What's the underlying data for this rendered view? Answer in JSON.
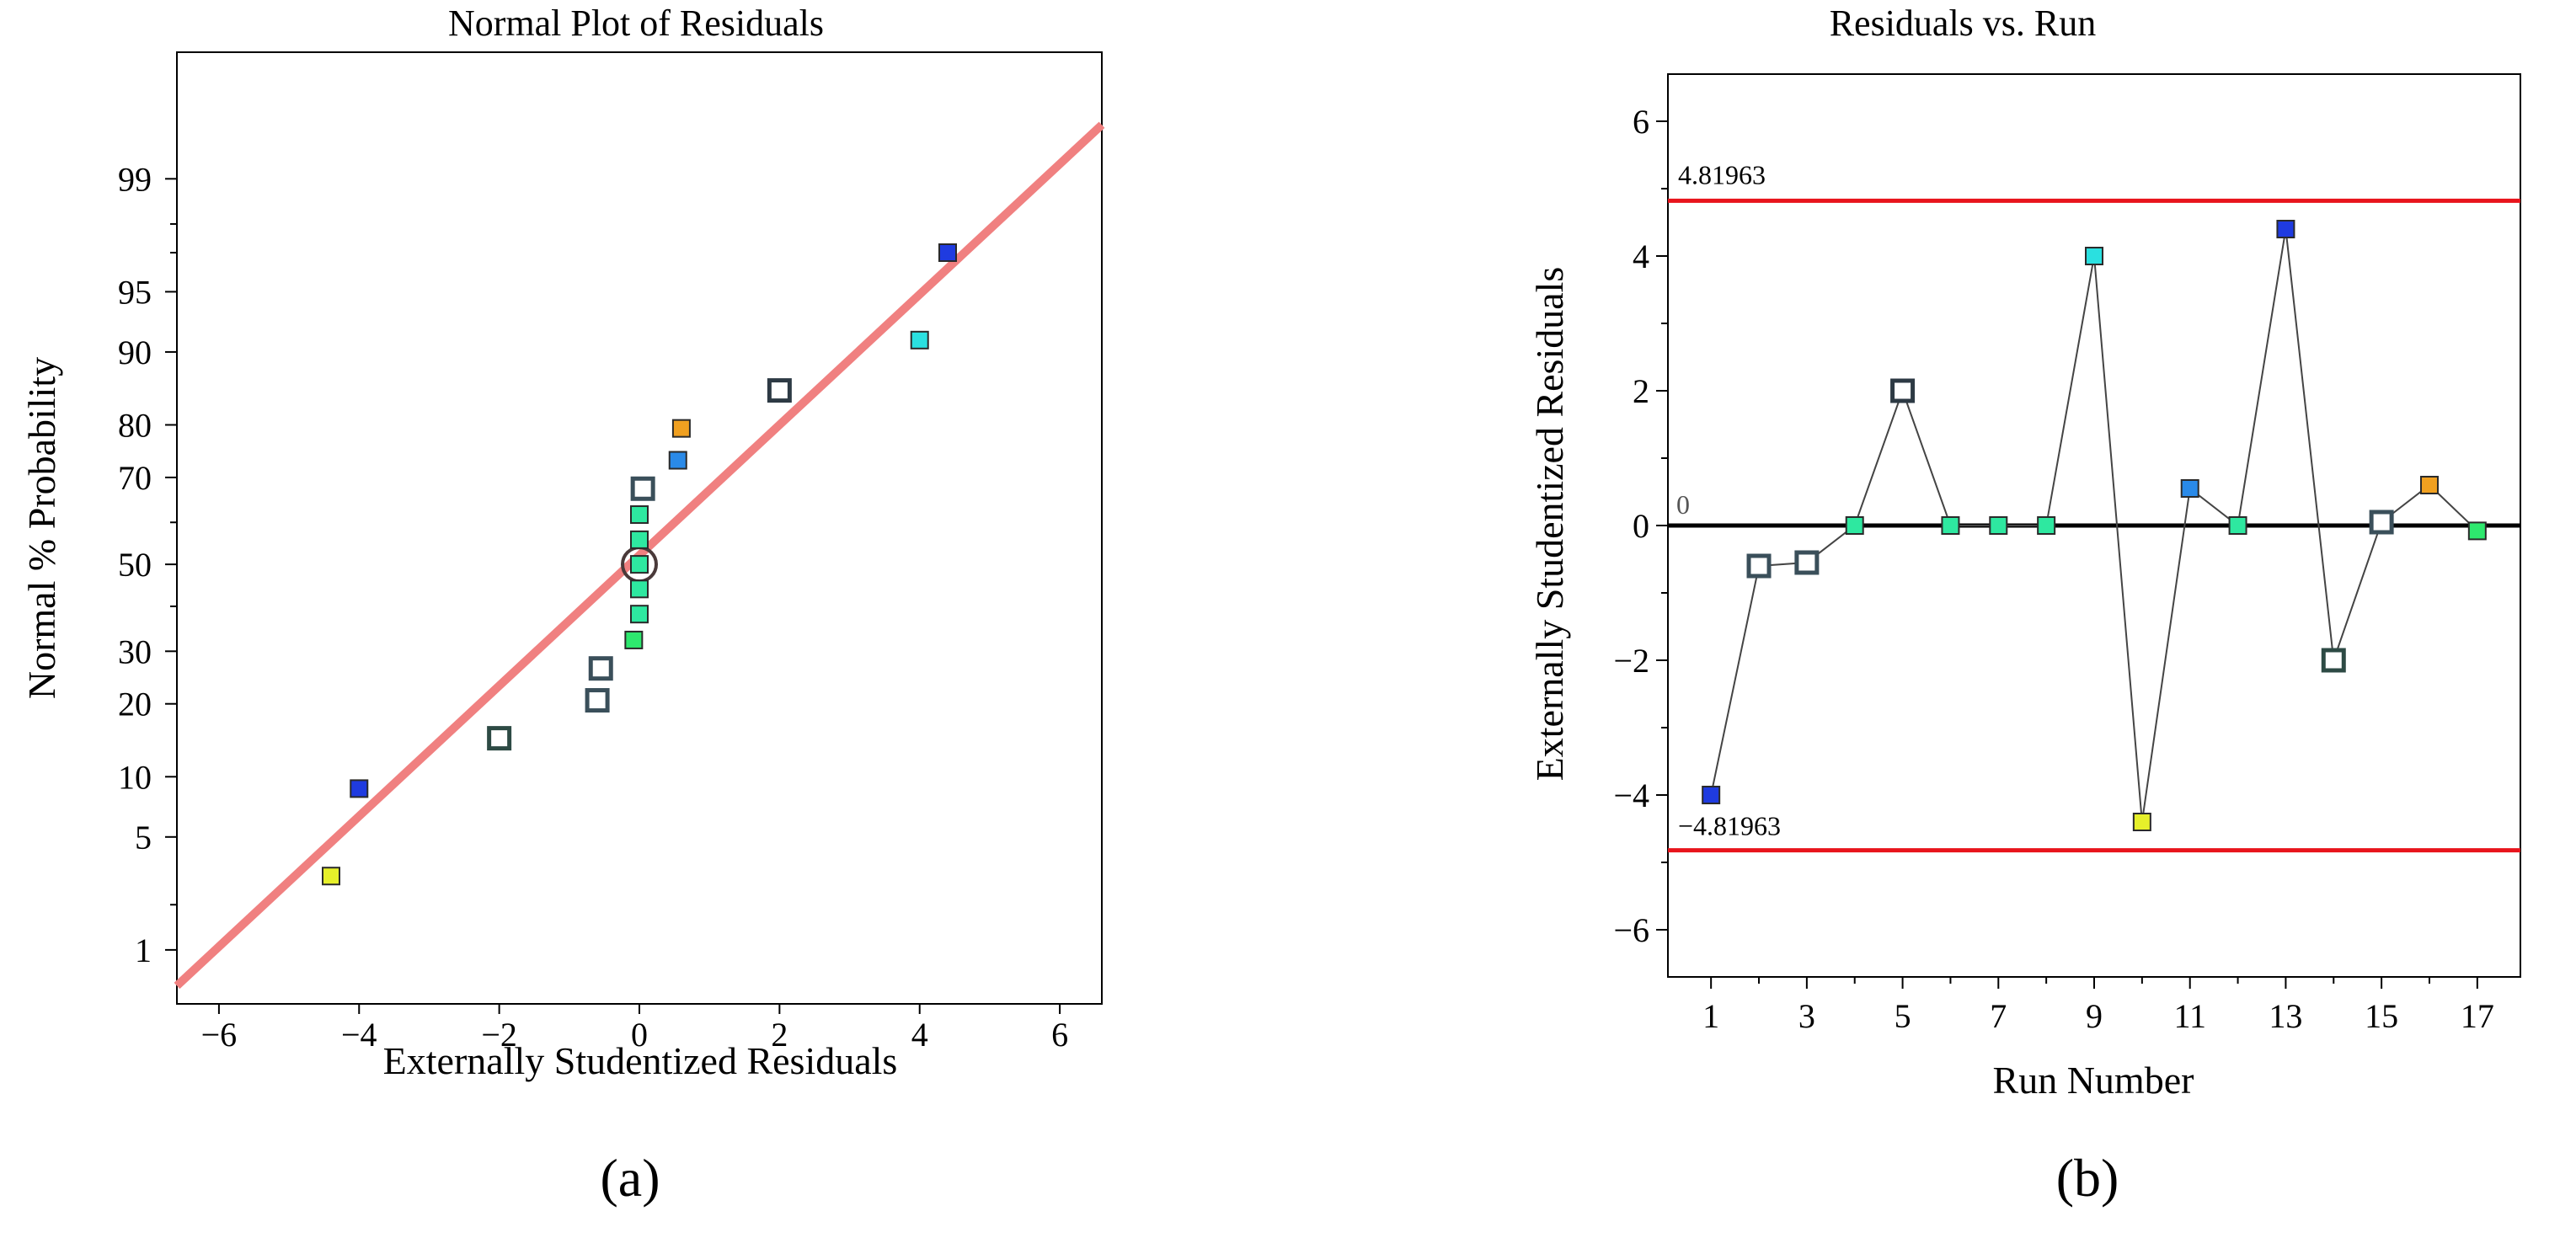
{
  "panel_labels": [
    "(a)",
    "(b)"
  ],
  "chart_data": [
    {
      "type": "scatter",
      "title": "Normal Plot of Residuals",
      "xlabel": "Externally Studentized Residuals",
      "ylabel": "Normal % Probability",
      "xlim": [
        -6.6,
        6.6
      ],
      "ylim_percent": [
        0.4,
        99.9
      ],
      "x_ticks": [
        "−6",
        "−4",
        "−2",
        "0",
        "2",
        "4",
        "6"
      ],
      "x_tick_values": [
        -6,
        -4,
        -2,
        0,
        2,
        4,
        6
      ],
      "y_ticks": [
        "1",
        "5",
        "10",
        "20",
        "30",
        "50",
        "70",
        "80",
        "90",
        "95",
        "99"
      ],
      "y_tick_values": [
        1,
        5,
        10,
        20,
        30,
        50,
        70,
        80,
        90,
        95,
        99
      ],
      "fit_line": {
        "x": [
          -6.6,
          6.6
        ],
        "percent": [
          0.55,
          99.6
        ],
        "color": "#f08080"
      },
      "points": [
        {
          "x": -4.4,
          "percent": 3.0,
          "color": "#e6f02a",
          "style": "filled"
        },
        {
          "x": -4.0,
          "percent": 8.8,
          "color": "#1f3be0",
          "style": "filled"
        },
        {
          "x": -2.0,
          "percent": 14.7,
          "color": "#2d4a44",
          "style": "open"
        },
        {
          "x": -0.6,
          "percent": 20.6,
          "color": "#3a4f5a",
          "style": "open"
        },
        {
          "x": -0.55,
          "percent": 26.5,
          "color": "#3a4f5a",
          "style": "open"
        },
        {
          "x": -0.08,
          "percent": 32.4,
          "color": "#2ee86e",
          "style": "filled"
        },
        {
          "x": 0.0,
          "percent": 38.2,
          "color": "#2ee8a0",
          "style": "filled"
        },
        {
          "x": 0.0,
          "percent": 44.1,
          "color": "#2ee8a0",
          "style": "filled"
        },
        {
          "x": 0.0,
          "percent": 50.0,
          "color": "#2ee8a0",
          "style": "filled"
        },
        {
          "x": 0.0,
          "percent": 55.9,
          "color": "#2ee8a0",
          "style": "filled"
        },
        {
          "x": 0.0,
          "percent": 61.8,
          "color": "#2ee8a0",
          "style": "filled"
        },
        {
          "x": 0.05,
          "percent": 67.6,
          "color": "#3a4f5a",
          "style": "open"
        },
        {
          "x": 0.55,
          "percent": 73.5,
          "color": "#2a8ae8",
          "style": "filled"
        },
        {
          "x": 0.6,
          "percent": 79.4,
          "color": "#f0a020",
          "style": "filled"
        },
        {
          "x": 2.0,
          "percent": 85.3,
          "color": "#2d3a44",
          "style": "open"
        },
        {
          "x": 4.0,
          "percent": 91.2,
          "color": "#2ae0e0",
          "style": "filled"
        },
        {
          "x": 4.4,
          "percent": 97.0,
          "color": "#1f3be0",
          "style": "filled"
        }
      ],
      "center_marker": {
        "x": 0.0,
        "percent": 50.0
      }
    },
    {
      "type": "line",
      "title": "Residuals vs. Run",
      "xlabel": "Run Number",
      "ylabel": "Externally Studentized Residuals",
      "xlim": [
        0.1,
        17.9
      ],
      "ylim": [
        -6.7,
        6.7
      ],
      "x_ticks": [
        "1",
        "3",
        "5",
        "7",
        "9",
        "11",
        "13",
        "15",
        "17"
      ],
      "x_tick_values": [
        1,
        3,
        5,
        7,
        9,
        11,
        13,
        15,
        17
      ],
      "y_ticks": [
        "6",
        "4",
        "2",
        "0",
        "−2",
        "−4",
        "−6"
      ],
      "y_tick_values": [
        6,
        4,
        2,
        0,
        -2,
        -4,
        -6
      ],
      "limits": {
        "upper": 4.81963,
        "upper_label": "4.81963",
        "lower": -4.81963,
        "lower_label": "−4.81963",
        "zero_label": "0",
        "limit_color": "#e8141c"
      },
      "series": [
        {
          "name": "residuals",
          "runs": [
            1,
            2,
            3,
            4,
            5,
            6,
            7,
            8,
            9,
            10,
            11,
            12,
            13,
            14,
            15,
            16,
            17
          ],
          "values": [
            -4.0,
            -0.6,
            -0.55,
            0.0,
            2.0,
            0.0,
            0.0,
            0.0,
            4.0,
            -4.4,
            0.55,
            0.0,
            4.4,
            -2.0,
            0.05,
            0.6,
            -0.08
          ],
          "colors": [
            "#1f3be0",
            "#3a4f5a",
            "#3a4f5a",
            "#2ee8a0",
            "#2d3a44",
            "#2ee8a0",
            "#2ee8a0",
            "#2ee8a0",
            "#2ae0e0",
            "#e6f02a",
            "#2a8ae8",
            "#2ee8a0",
            "#1f3be0",
            "#2d4a44",
            "#3a4f5a",
            "#f0a020",
            "#2ee86e"
          ],
          "styles": [
            "filled",
            "open",
            "open",
            "filled",
            "open",
            "filled",
            "filled",
            "filled",
            "filled",
            "filled",
            "filled",
            "filled",
            "filled",
            "open",
            "open",
            "filled",
            "filled"
          ]
        }
      ]
    }
  ]
}
